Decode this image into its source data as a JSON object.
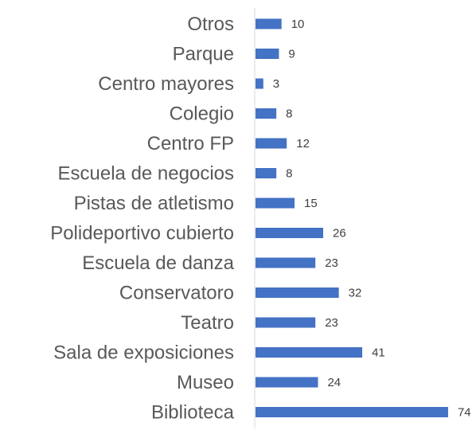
{
  "chart_data": {
    "type": "bar",
    "orientation": "horizontal",
    "title": "",
    "xlabel": "",
    "ylabel": "",
    "categories": [
      "Otros",
      "Parque",
      "Centro mayores",
      "Colegio",
      "Centro FP",
      "Escuela de negocios",
      "Pistas de atletismo",
      "Polideportivo cubierto",
      "Escuela de danza",
      "Conservatoro",
      "Teatro",
      "Sala de exposiciones",
      "Museo",
      "Biblioteca"
    ],
    "values": [
      10,
      9,
      3,
      8,
      12,
      8,
      15,
      26,
      23,
      32,
      23,
      41,
      24,
      74
    ],
    "xlim": [
      0,
      80
    ],
    "grid": false,
    "legend": "none",
    "data_labels": true,
    "bar_color": "#4472C4",
    "axis_color": "#D9D9D9",
    "label_color": "#595959"
  }
}
